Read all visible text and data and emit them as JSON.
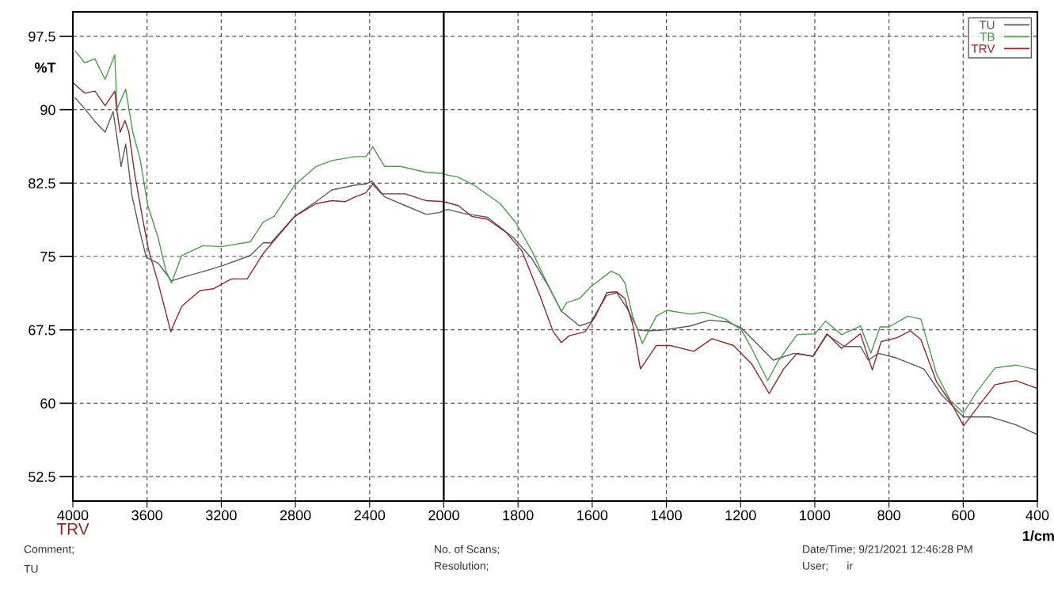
{
  "chart_data": [
    {
      "type": "line",
      "ylabel": "%T",
      "xlim": [
        4000,
        2000
      ],
      "ylim": [
        50,
        100
      ],
      "xticks": [
        4000,
        3600,
        3200,
        2800,
        2400,
        {
          "value": 2000,
          "label": null
        }
      ],
      "yticks": [
        52.5,
        60,
        67.5,
        75,
        82.5,
        90,
        97.5
      ],
      "grid": true,
      "series": [
        {
          "color": "#5a5a5a",
          "x": [
            3987,
            3936,
            3881,
            3826,
            3783,
            3766,
            3740,
            3715,
            3681,
            3638,
            3604,
            3540,
            3468,
            3400,
            3255,
            3187,
            3043,
            2974,
            2932,
            2804,
            2689,
            2604,
            2477,
            2421,
            2387,
            2319,
            2221,
            2094,
            2021,
            2000
          ],
          "values": [
            91.2,
            90.1,
            88.8,
            87.7,
            89.8,
            87.7,
            84.2,
            86.5,
            81.2,
            77.5,
            74.9,
            74.3,
            72.5,
            72.9,
            73.7,
            74.1,
            75.1,
            76.4,
            76.4,
            79.1,
            80.6,
            81.8,
            82.3,
            82.4,
            82.7,
            81.1,
            80.3,
            79.3,
            79.5,
            79.7
          ]
        },
        {
          "color": "#4e9a4e",
          "x": [
            3987,
            3936,
            3881,
            3826,
            3774,
            3762,
            3715,
            3677,
            3638,
            3596,
            3540,
            3498,
            3468,
            3413,
            3298,
            3200,
            3043,
            2974,
            2915,
            2804,
            2689,
            2604,
            2477,
            2421,
            2383,
            2319,
            2234,
            2094,
            2009,
            2000
          ],
          "values": [
            96.0,
            94.8,
            95.2,
            93.1,
            95.6,
            90.1,
            92.1,
            87.7,
            85.0,
            80.2,
            76.9,
            73.5,
            72.3,
            75.1,
            76.1,
            76.0,
            76.5,
            78.5,
            79.1,
            82.3,
            84.2,
            84.8,
            85.2,
            85.2,
            86.2,
            84.2,
            84.2,
            83.6,
            83.5,
            83.4
          ]
        },
        {
          "color": "#8b2a2a",
          "x": [
            3996,
            3936,
            3881,
            3826,
            3774,
            3762,
            3745,
            3719,
            3698,
            3668,
            3626,
            3591,
            3540,
            3472,
            3455,
            3413,
            3315,
            3243,
            3145,
            3060,
            2974,
            2889,
            2804,
            2689,
            2604,
            2532,
            2477,
            2421,
            2383,
            2336,
            2209,
            2094,
            2000
          ],
          "values": [
            92.7,
            91.7,
            91.9,
            90.4,
            91.9,
            89.8,
            87.7,
            88.9,
            87.7,
            83.6,
            79.1,
            75.6,
            72.3,
            67.3,
            68.1,
            69.9,
            71.5,
            71.7,
            72.7,
            72.7,
            75.3,
            77.2,
            79.1,
            80.4,
            80.7,
            80.6,
            81.1,
            81.5,
            82.4,
            81.4,
            81.4,
            80.7,
            80.6
          ]
        }
      ],
      "annotations": [
        "TRV",
        "Comment;",
        "TU",
        "No. of Scans;",
        "Resolution;",
        "Date/Time; 9/21/2021 12:46:28 PM",
        "User;      ir"
      ]
    },
    {
      "type": "line",
      "xlabel": "1/cm",
      "xlim": [
        2000,
        400
      ],
      "ylim": [
        50,
        100
      ],
      "tick_labels": "x",
      "xticks": [
        2000,
        1800,
        1600,
        1400,
        1200,
        1000,
        800,
        600,
        400
      ],
      "yticks": [
        52.5,
        60,
        67.5,
        75,
        82.5,
        90,
        97.5
      ],
      "grid": true,
      "legend": "top right",
      "series": [
        {
          "name": "TU",
          "color": "#5a5a5a",
          "x": [
            2000,
            1989,
            1947,
            1882,
            1812,
            1763,
            1720,
            1683,
            1634,
            1604,
            1561,
            1534,
            1506,
            1476,
            1448,
            1405,
            1335,
            1283,
            1235,
            1198,
            1112,
            1056,
            1005,
            967,
            920,
            877,
            856,
            828,
            778,
            706,
            657,
            599,
            528,
            458,
            400
          ],
          "values": [
            79.7,
            79.8,
            79.4,
            79.0,
            76.9,
            74.8,
            72.1,
            69.4,
            67.9,
            68.3,
            71.0,
            71.3,
            69.7,
            67.5,
            67.4,
            67.5,
            67.9,
            68.5,
            68.3,
            67.7,
            64.4,
            65.1,
            64.8,
            67.0,
            65.8,
            65.8,
            64.4,
            65.1,
            64.6,
            63.5,
            60.8,
            58.6,
            58.6,
            57.8,
            56.8
          ]
        },
        {
          "name": "TB",
          "color": "#4e9a4e",
          "x": [
            2000,
            1961,
            1919,
            1848,
            1805,
            1763,
            1727,
            1683,
            1668,
            1634,
            1604,
            1549,
            1527,
            1512,
            1491,
            1465,
            1427,
            1399,
            1335,
            1299,
            1241,
            1198,
            1170,
            1127,
            1099,
            1048,
            999,
            971,
            928,
            877,
            849,
            824,
            800,
            749,
            714,
            672,
            635,
            599,
            565,
            514,
            458,
            400
          ],
          "values": [
            83.4,
            83.1,
            82.3,
            80.4,
            78.4,
            75.6,
            72.7,
            69.4,
            70.3,
            70.7,
            71.9,
            73.5,
            73.1,
            72.3,
            68.9,
            66.1,
            68.9,
            69.5,
            69.1,
            69.3,
            68.6,
            67.5,
            65.6,
            62.3,
            64.3,
            67.0,
            67.1,
            68.4,
            67.0,
            67.9,
            65.1,
            67.8,
            67.8,
            68.9,
            68.6,
            63.0,
            60.3,
            59.0,
            61.1,
            63.6,
            63.9,
            63.4
          ]
        },
        {
          "name": "TRV",
          "color": "#8b2a2a",
          "x": [
            2000,
            1961,
            1925,
            1882,
            1833,
            1790,
            1741,
            1705,
            1683,
            1662,
            1619,
            1591,
            1561,
            1534,
            1512,
            1491,
            1470,
            1427,
            1390,
            1326,
            1277,
            1219,
            1170,
            1123,
            1084,
            1048,
            1005,
            967,
            928,
            877,
            845,
            821,
            778,
            742,
            714,
            672,
            629,
            599,
            565,
            514,
            458,
            400
          ],
          "values": [
            80.6,
            80.2,
            79.1,
            78.8,
            77.5,
            75.6,
            71.0,
            67.3,
            66.2,
            66.9,
            67.3,
            68.9,
            71.3,
            71.4,
            70.7,
            68.1,
            63.5,
            65.9,
            65.9,
            65.3,
            66.6,
            65.9,
            64.0,
            61.0,
            63.5,
            65.1,
            64.8,
            67.1,
            65.6,
            67.1,
            63.4,
            66.3,
            66.7,
            67.4,
            66.5,
            62.2,
            59.8,
            57.7,
            59.4,
            61.9,
            62.3,
            61.5
          ]
        }
      ]
    }
  ]
}
